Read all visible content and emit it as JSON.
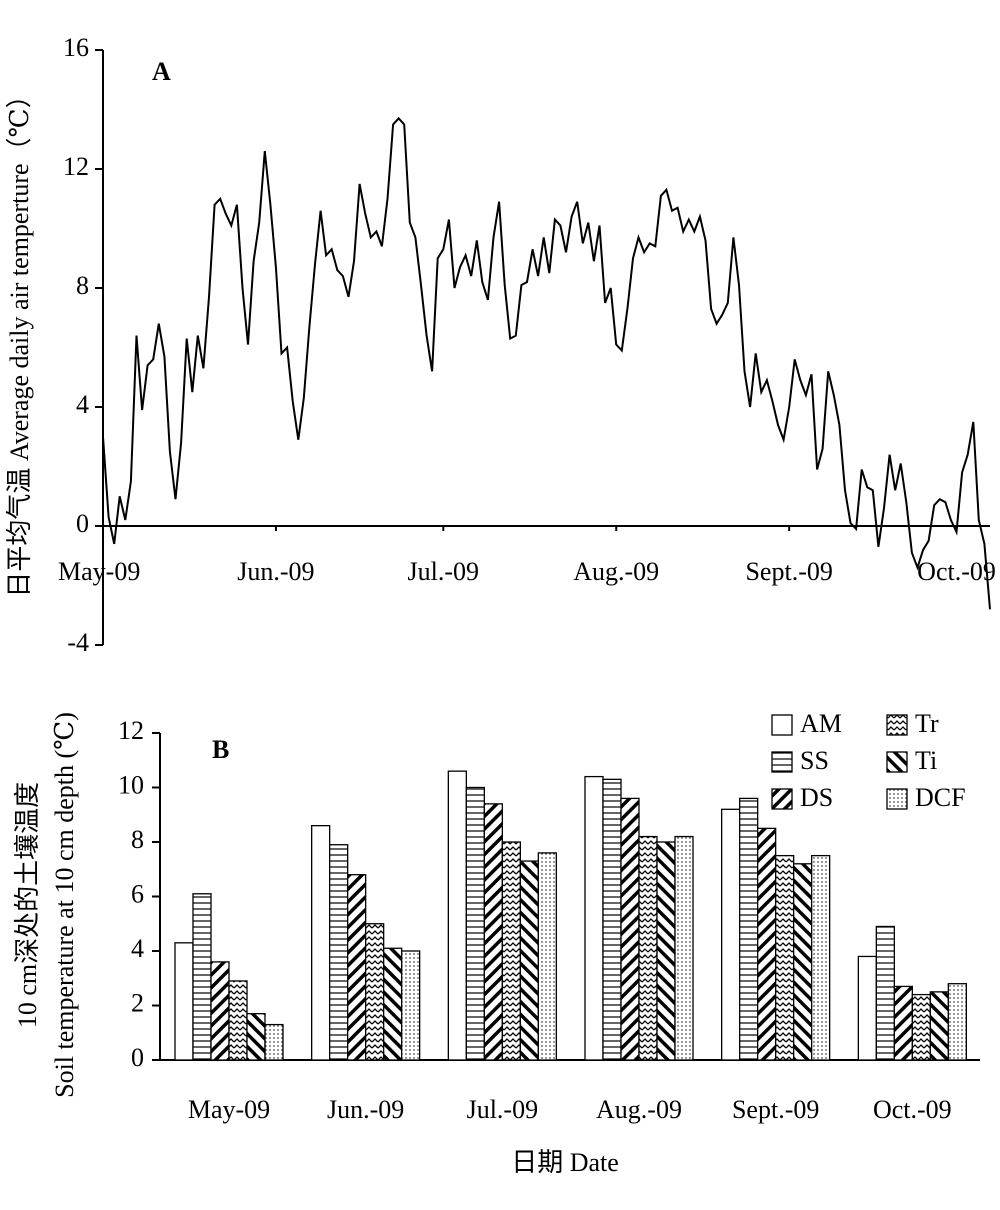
{
  "chart_data": [
    {
      "type": "line",
      "label": "A",
      "ylabel": "日平均气温 Average daily air temperture（℃）",
      "color": "#000000",
      "x": [
        0,
        1,
        2,
        3,
        4,
        5,
        6,
        7,
        8,
        9,
        10,
        11,
        12,
        13,
        14,
        15,
        16,
        17,
        18,
        19,
        20,
        21,
        22,
        23,
        24,
        25,
        26,
        27,
        28,
        29,
        30,
        31,
        32,
        33,
        34,
        35,
        36,
        37,
        38,
        39,
        40,
        41,
        42,
        43,
        44,
        45,
        46,
        47,
        48,
        49,
        50,
        51,
        52,
        53,
        54,
        55,
        56,
        57,
        58,
        59,
        60,
        61,
        62,
        63,
        64,
        65,
        66,
        67,
        68,
        69,
        70,
        71,
        72,
        73,
        74,
        75,
        76,
        77,
        78,
        79,
        80,
        81,
        82,
        83,
        84,
        85,
        86,
        87,
        88,
        89,
        90,
        91,
        92,
        93,
        94,
        95,
        96,
        97,
        98,
        99,
        100,
        101,
        102,
        103,
        104,
        105,
        106,
        107,
        108,
        109,
        110,
        111,
        112,
        113,
        114,
        115,
        116,
        117,
        118,
        119,
        120,
        121,
        122,
        123,
        124,
        125,
        126,
        127,
        128,
        129,
        130,
        131,
        132,
        133,
        134,
        135,
        136,
        137,
        138,
        139,
        140,
        141,
        142,
        143,
        144,
        145,
        146,
        147,
        148,
        149,
        150,
        151,
        152,
        153,
        154,
        155,
        156,
        157,
        158,
        159
      ],
      "values": [
        3.0,
        0.3,
        -0.6,
        1.0,
        0.2,
        1.5,
        6.4,
        3.9,
        5.4,
        5.6,
        6.8,
        5.7,
        2.5,
        0.9,
        2.8,
        6.3,
        4.5,
        6.4,
        5.3,
        7.7,
        10.8,
        11.0,
        10.5,
        10.1,
        10.8,
        8.0,
        6.1,
        8.9,
        10.2,
        12.6,
        10.8,
        8.7,
        5.8,
        6.0,
        4.2,
        2.9,
        4.3,
        6.7,
        8.8,
        10.6,
        9.1,
        9.3,
        8.6,
        8.4,
        7.7,
        8.9,
        11.5,
        10.5,
        9.7,
        9.9,
        9.4,
        11.0,
        13.5,
        13.7,
        13.5,
        10.2,
        9.7,
        8.1,
        6.4,
        5.2,
        9.0,
        9.3,
        10.3,
        8.0,
        8.7,
        9.1,
        8.4,
        9.6,
        8.2,
        7.6,
        9.7,
        10.9,
        8.1,
        6.3,
        6.4,
        8.1,
        8.2,
        9.3,
        8.4,
        9.7,
        8.5,
        10.3,
        10.1,
        9.2,
        10.4,
        10.9,
        9.5,
        10.2,
        8.9,
        10.1,
        7.5,
        8.0,
        6.1,
        5.9,
        7.3,
        9.0,
        9.7,
        9.2,
        9.5,
        9.4,
        11.1,
        11.3,
        10.6,
        10.7,
        9.9,
        10.3,
        9.9,
        10.4,
        9.6,
        7.3,
        6.8,
        7.1,
        7.5,
        9.7,
        8.1,
        5.2,
        4.0,
        5.8,
        4.5,
        4.9,
        4.2,
        3.4,
        2.9,
        4.0,
        5.6,
        4.9,
        4.4,
        5.1,
        1.9,
        2.6,
        5.2,
        4.4,
        3.4,
        1.2,
        0.1,
        -0.1,
        1.9,
        1.3,
        1.2,
        -0.7,
        0.6,
        2.4,
        1.2,
        2.1,
        0.8,
        -0.9,
        -1.4,
        -0.8,
        -0.5,
        0.7,
        0.9,
        0.8,
        0.2,
        -0.2,
        1.8,
        2.4,
        3.5,
        0.2,
        -0.6,
        -2.8
      ],
      "xlim": [
        0,
        159
      ],
      "xticks": [
        {
          "value": 0,
          "label": "May-09"
        },
        {
          "value": 31,
          "label": "Jun.-09"
        },
        {
          "value": 61,
          "label": "Jul.-09"
        },
        {
          "value": 92,
          "label": "Aug.-09"
        },
        {
          "value": 123,
          "label": "Sept.-09"
        },
        {
          "value": 153,
          "label": "Oct.-09"
        }
      ],
      "ylim": [
        -4,
        16
      ],
      "yticks": [
        -4,
        0,
        4,
        8,
        12,
        16
      ]
    },
    {
      "type": "bar",
      "label": "B",
      "ylabel": [
        "10 cm深处的土壤温度",
        "Soil temperature at 10 cm depth (℃)"
      ],
      "xlabel": "日期 Date",
      "categories": [
        "May-09",
        "Jun.-09",
        "Jul.-09",
        "Aug.-09",
        "Sept.-09",
        "Oct.-09"
      ],
      "series": [
        {
          "name": "AM",
          "color": "#000000",
          "pattern": "none",
          "values": [
            4.3,
            8.6,
            10.6,
            10.4,
            9.2,
            3.8
          ]
        },
        {
          "name": "SS",
          "color": "#000000",
          "pattern": "horizontal",
          "values": [
            6.1,
            7.9,
            10.0,
            10.3,
            9.6,
            4.9
          ]
        },
        {
          "name": "DS",
          "color": "#000000",
          "pattern": "diagonal",
          "values": [
            3.6,
            6.8,
            9.4,
            9.6,
            8.5,
            2.7
          ]
        },
        {
          "name": "Tr",
          "color": "#000000",
          "pattern": "zigzag",
          "values": [
            2.9,
            5.0,
            8.0,
            8.2,
            7.5,
            2.4
          ]
        },
        {
          "name": "Ti",
          "color": "#000000",
          "pattern": "backslash",
          "values": [
            1.7,
            4.1,
            7.3,
            8.0,
            7.2,
            2.5
          ]
        },
        {
          "name": "DCF",
          "color": "#000000",
          "pattern": "dots",
          "values": [
            1.3,
            4.0,
            7.6,
            8.2,
            7.5,
            2.8
          ]
        }
      ],
      "ylim": [
        0,
        12
      ],
      "yticks": [
        0,
        2,
        4,
        6,
        8,
        10,
        12
      ],
      "legend": "top-right"
    }
  ]
}
